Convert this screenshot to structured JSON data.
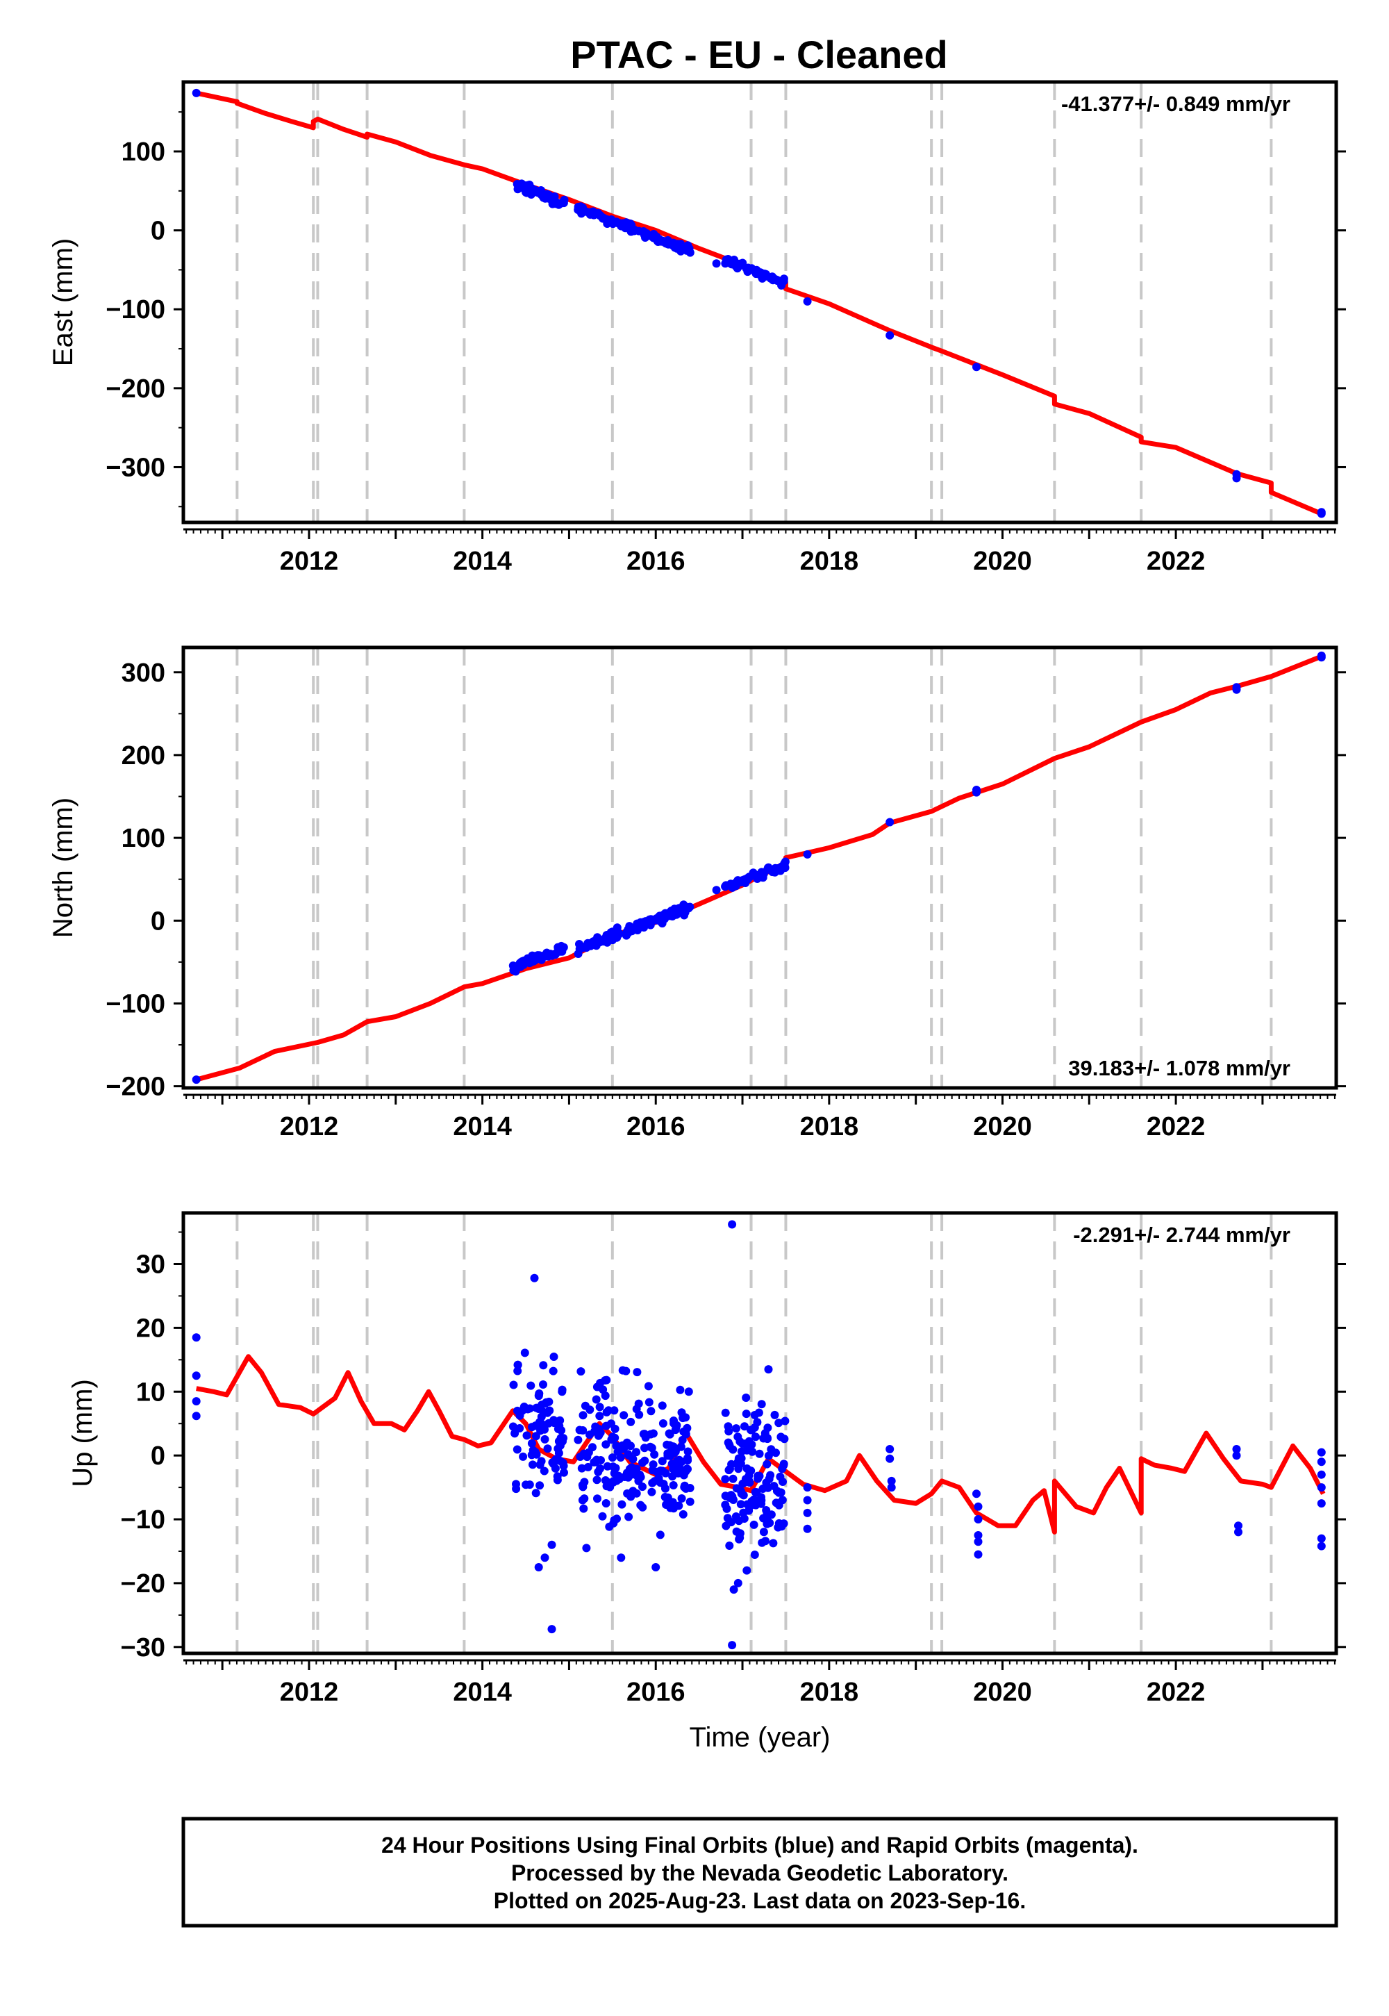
{
  "title": "PTAC  - EU - Cleaned",
  "colors": {
    "final_orbits": "#0000ff",
    "model": "#ff0000",
    "breaks": "#c8c8c8",
    "frame": "#000000"
  },
  "x_axis": {
    "range": [
      2010.55,
      2023.85
    ],
    "ticks": [
      2012,
      2014,
      2016,
      2018,
      2020,
      2022
    ],
    "labels": [
      "2012",
      "2014",
      "2016",
      "2018",
      "2020",
      "2022"
    ],
    "xlabel": "Time (year)"
  },
  "chart_data": [
    {
      "type": "scatter",
      "component": "east",
      "ylabel": "East (mm)",
      "ylim": [
        -370,
        188
      ],
      "yticks": [
        100,
        0,
        -100,
        -200,
        -300
      ],
      "yticklabels": [
        "100",
        "0",
        "−100",
        "−200",
        "−300"
      ],
      "rate": "-41.377+/- 0.849 mm/yr",
      "rate_position": "top-right",
      "breaks": [
        2011.17,
        2012.05,
        2012.1,
        2012.67,
        2013.79,
        2015.5,
        2017.1,
        2017.5,
        2019.18,
        2019.3,
        2020.6,
        2021.6,
        2023.1
      ],
      "model": [
        [
          2010.7,
          174
        ],
        [
          2011.17,
          163
        ],
        [
          2011.17,
          161
        ],
        [
          2011.5,
          148
        ],
        [
          2011.8,
          138
        ],
        [
          2012.05,
          130
        ],
        [
          2012.05,
          138
        ],
        [
          2012.1,
          141
        ],
        [
          2012.4,
          128
        ],
        [
          2012.67,
          118
        ],
        [
          2012.67,
          122
        ],
        [
          2013.0,
          112
        ],
        [
          2013.4,
          95
        ],
        [
          2013.79,
          83
        ],
        [
          2014.0,
          78
        ],
        [
          2014.5,
          58
        ],
        [
          2015.0,
          39
        ],
        [
          2015.5,
          18
        ],
        [
          2016.0,
          0
        ],
        [
          2016.5,
          -23
        ],
        [
          2017.1,
          -48
        ],
        [
          2017.5,
          -66
        ],
        [
          2017.5,
          -74
        ],
        [
          2018.0,
          -93
        ],
        [
          2018.7,
          -127
        ],
        [
          2019.18,
          -148
        ],
        [
          2019.3,
          -153
        ],
        [
          2020.0,
          -183
        ],
        [
          2020.6,
          -210
        ],
        [
          2020.6,
          -220
        ],
        [
          2021.0,
          -232
        ],
        [
          2021.6,
          -262
        ],
        [
          2021.6,
          -268
        ],
        [
          2022.0,
          -275
        ],
        [
          2022.7,
          -308
        ],
        [
          2023.1,
          -320
        ],
        [
          2023.1,
          -332
        ],
        [
          2023.7,
          -360
        ]
      ],
      "rate_mm_per_yr": -41.377,
      "clusters": [
        {
          "start": 2014.35,
          "end": 2014.95,
          "ref_x": 2014.35,
          "ref_y": 59,
          "noise": 5,
          "count": 55
        },
        {
          "start": 2015.1,
          "end": 2016.4,
          "ref_x": 2015.1,
          "ref_y": 28,
          "noise": 4,
          "count": 110
        },
        {
          "start": 2016.8,
          "end": 2017.5,
          "ref_x": 2016.8,
          "ref_y": -38,
          "noise": 4,
          "count": 55
        }
      ],
      "points": [
        [
          2010.7,
          174
        ],
        [
          2016.7,
          -42
        ],
        [
          2017.75,
          -90
        ],
        [
          2018.7,
          -133
        ],
        [
          2019.7,
          -173
        ],
        [
          2022.7,
          -309
        ],
        [
          2022.7,
          -314
        ],
        [
          2023.68,
          -357
        ],
        [
          2023.68,
          -359
        ]
      ]
    },
    {
      "type": "scatter",
      "component": "north",
      "ylabel": "North (mm)",
      "ylim": [
        -202,
        330
      ],
      "yticks": [
        300,
        200,
        100,
        0,
        -100,
        -200
      ],
      "yticklabels": [
        "300",
        "200",
        "100",
        "0",
        "−100",
        "−200"
      ],
      "rate": "39.183+/- 1.078 mm/yr",
      "rate_position": "bottom-right",
      "breaks": [
        2011.17,
        2012.05,
        2012.1,
        2012.67,
        2013.79,
        2015.5,
        2017.1,
        2017.5,
        2019.18,
        2019.3,
        2020.6,
        2021.6,
        2023.1
      ],
      "model": [
        [
          2010.7,
          -192
        ],
        [
          2011.2,
          -178
        ],
        [
          2011.6,
          -158
        ],
        [
          2012.1,
          -147
        ],
        [
          2012.4,
          -138
        ],
        [
          2012.67,
          -122
        ],
        [
          2013.0,
          -116
        ],
        [
          2013.4,
          -100
        ],
        [
          2013.79,
          -80
        ],
        [
          2014.0,
          -76
        ],
        [
          2014.5,
          -58
        ],
        [
          2015.0,
          -45
        ],
        [
          2015.5,
          -18
        ],
        [
          2016.0,
          -2
        ],
        [
          2016.5,
          20
        ],
        [
          2017.0,
          43
        ],
        [
          2017.5,
          70
        ],
        [
          2017.5,
          76
        ],
        [
          2018.0,
          88
        ],
        [
          2018.5,
          104
        ],
        [
          2018.7,
          118
        ],
        [
          2019.18,
          132
        ],
        [
          2019.5,
          148
        ],
        [
          2020.0,
          165
        ],
        [
          2020.6,
          196
        ],
        [
          2021.0,
          210
        ],
        [
          2021.6,
          240
        ],
        [
          2022.0,
          255
        ],
        [
          2022.4,
          275
        ],
        [
          2022.7,
          283
        ],
        [
          2023.1,
          295
        ],
        [
          2023.7,
          320
        ]
      ],
      "rate_mm_per_yr": 39.183,
      "clusters": [
        {
          "start": 2014.35,
          "end": 2014.95,
          "ref_x": 2014.35,
          "ref_y": -56,
          "noise": 5,
          "count": 55
        },
        {
          "start": 2015.1,
          "end": 2016.4,
          "ref_x": 2015.1,
          "ref_y": -34,
          "noise": 5,
          "count": 110
        },
        {
          "start": 2016.8,
          "end": 2017.5,
          "ref_x": 2016.8,
          "ref_y": 40,
          "noise": 4,
          "count": 55
        }
      ],
      "points": [
        [
          2010.7,
          -192
        ],
        [
          2016.7,
          37
        ],
        [
          2017.75,
          80
        ],
        [
          2018.7,
          119
        ],
        [
          2019.7,
          155
        ],
        [
          2019.7,
          158
        ],
        [
          2022.7,
          279
        ],
        [
          2022.7,
          282
        ],
        [
          2023.68,
          318
        ],
        [
          2023.68,
          320
        ]
      ]
    },
    {
      "type": "scatter",
      "component": "up",
      "ylabel": "Up (mm)",
      "ylim": [
        -31,
        38
      ],
      "yticks": [
        30,
        20,
        10,
        0,
        -10,
        -20,
        -30
      ],
      "yticklabels": [
        "30",
        "20",
        "10",
        "0",
        "−10",
        "−20",
        "−30"
      ],
      "rate": "-2.291+/- 2.744 mm/yr",
      "rate_position": "top-right",
      "breaks": [
        2011.17,
        2012.05,
        2012.1,
        2012.67,
        2013.79,
        2015.5,
        2017.1,
        2017.5,
        2019.18,
        2019.3,
        2020.6,
        2021.6,
        2023.1
      ],
      "model": [
        [
          2010.7,
          10.5
        ],
        [
          2010.9,
          10
        ],
        [
          2011.05,
          9.5
        ],
        [
          2011.3,
          15.5
        ],
        [
          2011.45,
          13
        ],
        [
          2011.65,
          8
        ],
        [
          2011.9,
          7.5
        ],
        [
          2012.05,
          6.5
        ],
        [
          2012.1,
          7
        ],
        [
          2012.3,
          9
        ],
        [
          2012.45,
          13
        ],
        [
          2012.6,
          8.5
        ],
        [
          2012.75,
          5
        ],
        [
          2012.95,
          5
        ],
        [
          2013.1,
          4
        ],
        [
          2013.25,
          7
        ],
        [
          2013.38,
          10
        ],
        [
          2013.5,
          7
        ],
        [
          2013.65,
          3
        ],
        [
          2013.79,
          2.5
        ],
        [
          2013.95,
          1.5
        ],
        [
          2014.1,
          2
        ],
        [
          2014.35,
          7
        ],
        [
          2014.5,
          5
        ],
        [
          2014.65,
          1
        ],
        [
          2014.85,
          -0.5
        ],
        [
          2015.05,
          -1
        ],
        [
          2015.35,
          5
        ],
        [
          2015.5,
          3
        ],
        [
          2015.7,
          -1
        ],
        [
          2016.0,
          -3
        ],
        [
          2016.15,
          -2
        ],
        [
          2016.35,
          3.5
        ],
        [
          2016.55,
          -1
        ],
        [
          2016.75,
          -4.5
        ],
        [
          2016.95,
          -5
        ],
        [
          2017.1,
          -5.5
        ],
        [
          2017.3,
          -0.5
        ],
        [
          2017.5,
          -2.5
        ],
        [
          2017.7,
          -4.5
        ],
        [
          2017.95,
          -5.5
        ],
        [
          2018.2,
          -4
        ],
        [
          2018.35,
          0
        ],
        [
          2018.55,
          -4
        ],
        [
          2018.75,
          -7
        ],
        [
          2019.0,
          -7.5
        ],
        [
          2019.18,
          -6
        ],
        [
          2019.3,
          -4
        ],
        [
          2019.5,
          -5
        ],
        [
          2019.7,
          -9
        ],
        [
          2019.95,
          -11
        ],
        [
          2020.15,
          -11
        ],
        [
          2020.35,
          -7
        ],
        [
          2020.48,
          -5.5
        ],
        [
          2020.6,
          -12
        ],
        [
          2020.6,
          -4
        ],
        [
          2020.85,
          -8
        ],
        [
          2021.05,
          -9
        ],
        [
          2021.2,
          -5
        ],
        [
          2021.35,
          -2
        ],
        [
          2021.6,
          -9
        ],
        [
          2021.6,
          -0.5
        ],
        [
          2021.75,
          -1.5
        ],
        [
          2021.95,
          -2
        ],
        [
          2022.1,
          -2.5
        ],
        [
          2022.35,
          3.5
        ],
        [
          2022.55,
          -0.5
        ],
        [
          2022.75,
          -4
        ],
        [
          2023.0,
          -4.5
        ],
        [
          2023.1,
          -5
        ],
        [
          2023.35,
          1.5
        ],
        [
          2023.55,
          -2
        ],
        [
          2023.7,
          -6
        ]
      ],
      "clusters": [
        {
          "start": 2014.35,
          "end": 2014.95,
          "ref_x": 2014.35,
          "ref_y": 3,
          "noise": 6,
          "count": 90
        },
        {
          "start": 2015.1,
          "end": 2016.4,
          "ref_x": 2015.1,
          "ref_y": 0,
          "noise": 6,
          "count": 210
        },
        {
          "start": 2016.8,
          "end": 2017.5,
          "ref_x": 2016.8,
          "ref_y": -3,
          "noise": 6,
          "count": 140
        }
      ],
      "points": [
        [
          2010.7,
          18.5
        ],
        [
          2010.7,
          12.5
        ],
        [
          2010.7,
          8.5
        ],
        [
          2010.7,
          6.2
        ],
        [
          2014.6,
          27.8
        ],
        [
          2014.8,
          -27.2
        ],
        [
          2014.72,
          -16
        ],
        [
          2014.65,
          -17.5
        ],
        [
          2014.8,
          -14
        ],
        [
          2015.2,
          -14.5
        ],
        [
          2015.6,
          -16
        ],
        [
          2016.0,
          -17.5
        ],
        [
          2016.88,
          36.2
        ],
        [
          2016.88,
          -29.7
        ],
        [
          2016.9,
          -21
        ],
        [
          2016.95,
          -20
        ],
        [
          2017.05,
          -18
        ],
        [
          2017.3,
          13.5
        ],
        [
          2017.75,
          -7
        ],
        [
          2017.75,
          -9
        ],
        [
          2017.75,
          -11.5
        ],
        [
          2017.75,
          -5
        ],
        [
          2018.7,
          1
        ],
        [
          2018.7,
          -0.5
        ],
        [
          2018.72,
          -4
        ],
        [
          2018.72,
          -5
        ],
        [
          2019.7,
          -6
        ],
        [
          2019.72,
          -8
        ],
        [
          2019.72,
          -10
        ],
        [
          2019.72,
          -12.5
        ],
        [
          2019.72,
          -13.5
        ],
        [
          2019.72,
          -15.5
        ],
        [
          2022.7,
          1
        ],
        [
          2022.7,
          0
        ],
        [
          2022.72,
          -11
        ],
        [
          2022.72,
          -12
        ],
        [
          2023.68,
          0.5
        ],
        [
          2023.68,
          -1
        ],
        [
          2023.68,
          -3
        ],
        [
          2023.68,
          -5
        ],
        [
          2023.68,
          -7.5
        ],
        [
          2023.68,
          -13
        ],
        [
          2023.68,
          -14.2
        ]
      ]
    }
  ],
  "footer": {
    "line1": "24 Hour Positions Using Final Orbits (blue) and Rapid Orbits (magenta).",
    "line2": "Processed by the Nevada Geodetic Laboratory.",
    "line3": "Plotted on 2025-Aug-23. Last data on 2023-Sep-16."
  }
}
